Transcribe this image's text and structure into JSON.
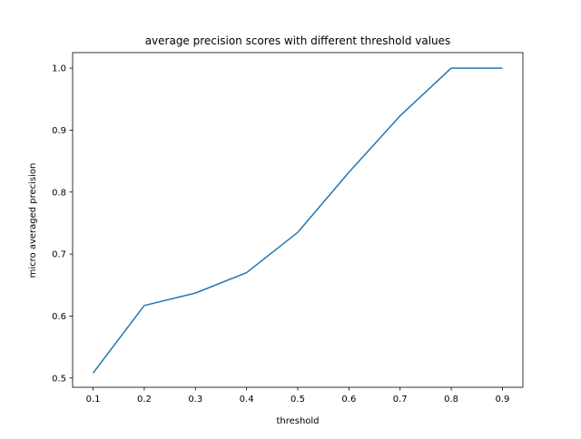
{
  "chart_data": {
    "type": "line",
    "title": "average precision scores with different threshold values",
    "xlabel": "threshold",
    "ylabel": "micro averaged precision",
    "x": [
      0.1,
      0.2,
      0.3,
      0.4,
      0.5,
      0.6,
      0.7,
      0.8,
      0.9
    ],
    "series": [
      {
        "name": "micro averaged precision",
        "color": "#1f77b4",
        "values": [
          0.508,
          0.617,
          0.637,
          0.67,
          0.735,
          0.832,
          0.923,
          1.0,
          1.0
        ]
      }
    ],
    "xlim": [
      0.06,
      0.94
    ],
    "ylim": [
      0.485,
      1.025
    ],
    "xticks": [
      0.1,
      0.2,
      0.3,
      0.4,
      0.5,
      0.6,
      0.7,
      0.8,
      0.9
    ],
    "xtick_labels": [
      "0.1",
      "0.2",
      "0.3",
      "0.4",
      "0.5",
      "0.6",
      "0.7",
      "0.8",
      "0.9"
    ],
    "yticks": [
      0.5,
      0.6,
      0.7,
      0.8,
      0.9,
      1.0
    ],
    "ytick_labels": [
      "0.5",
      "0.6",
      "0.7",
      "0.8",
      "0.9",
      "1.0"
    ],
    "grid": false,
    "legend": "none"
  }
}
